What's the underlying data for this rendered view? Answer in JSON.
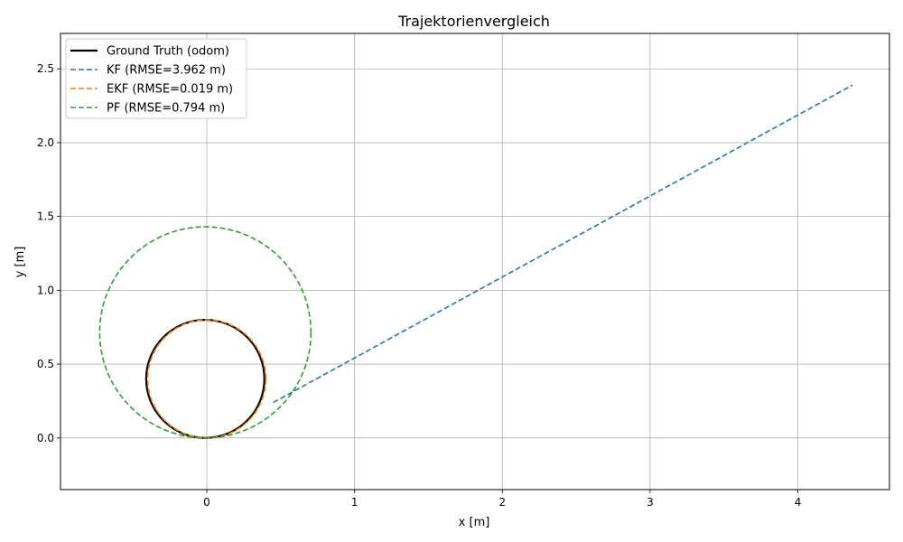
{
  "chart_data": {
    "type": "line",
    "title": "Trajektorienvergleich",
    "xlabel": "x [m]",
    "ylabel": "y [m]",
    "xlim": [
      -0.99,
      4.62
    ],
    "ylim": [
      -0.35,
      2.74
    ],
    "grid": true,
    "legend_position": "top-left",
    "x_ticks": [
      0,
      1,
      2,
      3,
      4
    ],
    "y_ticks": [
      0.0,
      0.5,
      1.0,
      1.5,
      2.0,
      2.5
    ],
    "x_tick_labels": [
      "0",
      "1",
      "2",
      "3",
      "4"
    ],
    "y_tick_labels": [
      "0.0",
      "0.5",
      "1.0",
      "1.5",
      "2.0",
      "2.5"
    ],
    "series": [
      {
        "name": "Ground Truth (odom)",
        "color": "#000000",
        "style": "solid",
        "shape": "circle",
        "center": [
          -0.01,
          0.4
        ],
        "radius": 0.4
      },
      {
        "name": "KF (RMSE=3.962 m)",
        "color": "#1f77b4",
        "style": "dashed",
        "shape": "line",
        "x": [
          0.45,
          4.37
        ],
        "y": [
          0.24,
          2.39
        ]
      },
      {
        "name": "EKF (RMSE=0.019 m)",
        "color": "#ff7f0e",
        "style": "dashed",
        "shape": "circle",
        "center": [
          0.0,
          0.4
        ],
        "radius": 0.4
      },
      {
        "name": "PF (RMSE=0.794 m)",
        "color": "#2ca02c",
        "style": "dashed",
        "shape": "circle",
        "center": [
          -0.01,
          0.715
        ],
        "radius": 0.715
      }
    ]
  }
}
